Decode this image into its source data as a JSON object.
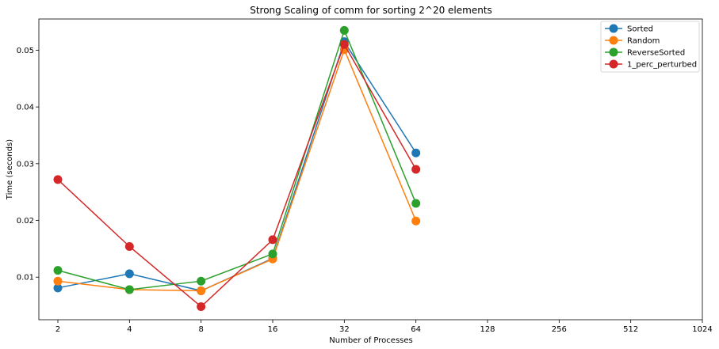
{
  "chart_data": {
    "type": "line",
    "title": "Strong Scaling of comm for sorting 2^20 elements",
    "xlabel": "Number of Processes",
    "ylabel": "Time (seconds)",
    "x_scale": "log2",
    "categories": [
      "2",
      "4",
      "8",
      "16",
      "32",
      "64",
      "128",
      "256",
      "512",
      "1024"
    ],
    "x": [
      2,
      4,
      8,
      16,
      32,
      64
    ],
    "ylim": [
      0.0025,
      0.0555
    ],
    "yticks": [
      "0.01",
      "0.02",
      "0.03",
      "0.04",
      "0.05"
    ],
    "grid": false,
    "legend_position": "top-right",
    "series": [
      {
        "name": "Sorted",
        "color": "#1f77b4",
        "values": [
          0.0081,
          0.0106,
          0.0076,
          0.0133,
          0.0515,
          0.0319
        ]
      },
      {
        "name": "Random",
        "color": "#ff7f0e",
        "values": [
          0.0093,
          0.0078,
          0.0076,
          0.0132,
          0.0501,
          0.0199
        ]
      },
      {
        "name": "ReverseSorted",
        "color": "#2ca02c",
        "values": [
          0.0112,
          0.0078,
          0.0093,
          0.0141,
          0.0535,
          0.023
        ]
      },
      {
        "name": "1_perc_perturbed",
        "color": "#d62728",
        "values": [
          0.0272,
          0.0154,
          0.0048,
          0.0166,
          0.051,
          0.029
        ]
      }
    ]
  }
}
